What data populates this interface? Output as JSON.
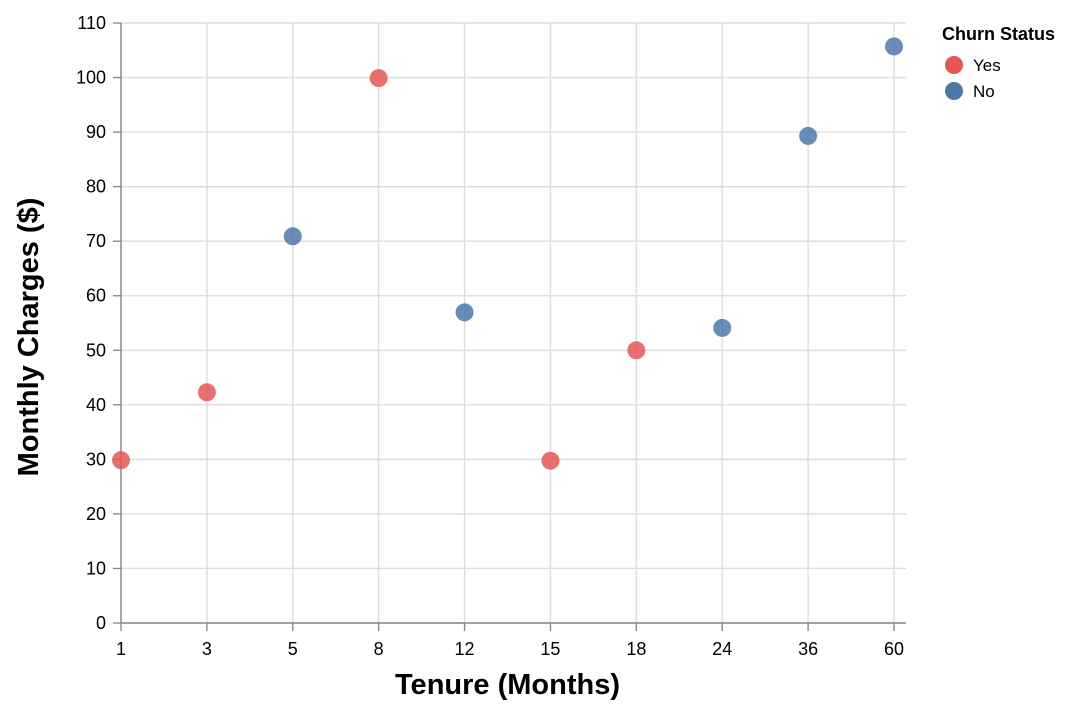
{
  "chart_data": {
    "type": "scatter",
    "title": "",
    "xlabel": "Tenure (Months)",
    "ylabel": "Monthly Charges ($)",
    "x_categories": [
      "1",
      "3",
      "5",
      "8",
      "12",
      "15",
      "18",
      "24",
      "36",
      "60"
    ],
    "ylim": [
      0,
      110
    ],
    "yticks": [
      0,
      10,
      20,
      30,
      40,
      50,
      60,
      70,
      80,
      90,
      100,
      110
    ],
    "grid": true,
    "legend": {
      "title": "Churn Status",
      "placement": "top-right",
      "entries": [
        {
          "label": "Yes",
          "color": "#e45756"
        },
        {
          "label": "No",
          "color": "#4c78a8"
        }
      ]
    },
    "points": [
      {
        "x": "1",
        "y": 29.85,
        "churn": "Yes"
      },
      {
        "x": "3",
        "y": 42.3,
        "churn": "Yes"
      },
      {
        "x": "5",
        "y": 70.9,
        "churn": "No"
      },
      {
        "x": "8",
        "y": 99.9,
        "churn": "Yes"
      },
      {
        "x": "12",
        "y": 56.95,
        "churn": "No"
      },
      {
        "x": "15",
        "y": 29.75,
        "churn": "Yes"
      },
      {
        "x": "18",
        "y": 50.0,
        "churn": "Yes"
      },
      {
        "x": "24",
        "y": 54.1,
        "churn": "No"
      },
      {
        "x": "36",
        "y": 89.3,
        "churn": "No"
      },
      {
        "x": "60",
        "y": 105.7,
        "churn": "No"
      }
    ]
  }
}
